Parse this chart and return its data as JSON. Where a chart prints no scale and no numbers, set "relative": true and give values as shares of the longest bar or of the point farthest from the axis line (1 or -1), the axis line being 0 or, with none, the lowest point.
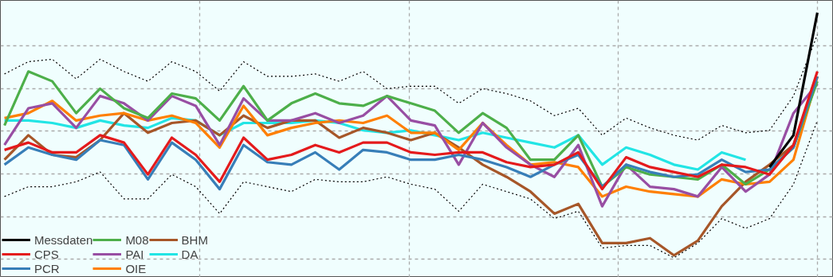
{
  "chart_data": {
    "type": "line",
    "relative": true,
    "grid": true,
    "legend": "bottom left",
    "line_style": "solid",
    "categories": [
      null,
      null,
      null,
      null,
      null,
      null,
      null,
      null,
      null,
      null,
      null,
      null,
      null,
      null,
      null,
      null,
      null,
      null,
      null,
      null,
      null,
      null,
      null,
      null,
      null,
      null,
      null,
      null,
      null,
      null,
      null,
      null,
      null,
      null,
      null
    ],
    "series": [
      {
        "name": "Messdaten",
        "color": "#000000",
        "values": [
          null,
          null,
          null,
          null,
          null,
          null,
          null,
          null,
          null,
          null,
          null,
          null,
          null,
          null,
          null,
          null,
          null,
          null,
          null,
          null,
          null,
          null,
          null,
          null,
          null,
          null,
          null,
          null,
          null,
          null,
          null,
          null,
          0.37,
          0.5,
          1.0
        ]
      },
      {
        "name": "CPS",
        "color": "#e41a1c",
        "values": [
          0.44,
          0.47,
          0.43,
          0.43,
          0.5,
          0.47,
          0.34,
          0.49,
          0.42,
          0.31,
          0.49,
          0.4,
          0.42,
          0.46,
          0.43,
          0.47,
          0.47,
          0.43,
          0.42,
          0.43,
          0.43,
          0.39,
          0.37,
          0.38,
          0.43,
          0.28,
          0.41,
          0.37,
          0.35,
          0.33,
          0.38,
          0.37,
          0.34,
          0.46,
          0.76
        ]
      },
      {
        "name": "PCR",
        "color": "#377eb8",
        "values": [
          0.38,
          0.45,
          0.42,
          0.4,
          0.48,
          0.46,
          0.32,
          0.47,
          0.4,
          0.28,
          0.46,
          0.39,
          0.38,
          0.43,
          0.36,
          0.44,
          0.43,
          0.4,
          0.4,
          0.42,
          0.4,
          0.37,
          0.33,
          0.38,
          0.42,
          0.29,
          0.38,
          0.35,
          0.33,
          0.34,
          0.4,
          0.35,
          0.36,
          0.45,
          0.74
        ]
      },
      {
        "name": "M08",
        "color": "#4daf4a",
        "values": [
          0.54,
          0.76,
          0.72,
          0.59,
          0.69,
          0.61,
          0.57,
          0.67,
          0.65,
          0.56,
          0.7,
          0.56,
          0.63,
          0.67,
          0.63,
          0.62,
          0.66,
          0.63,
          0.6,
          0.51,
          0.59,
          0.53,
          0.4,
          0.4,
          0.5,
          0.29,
          0.37,
          0.34,
          0.33,
          0.32,
          0.38,
          0.3,
          0.36,
          0.45,
          0.72
        ]
      },
      {
        "name": "PAI",
        "color": "#984ea3",
        "values": [
          0.46,
          0.61,
          0.63,
          0.53,
          0.66,
          0.63,
          0.56,
          0.66,
          0.62,
          0.46,
          0.65,
          0.56,
          0.56,
          0.59,
          0.55,
          0.58,
          0.66,
          0.56,
          0.54,
          0.38,
          0.55,
          0.45,
          0.38,
          0.33,
          0.46,
          0.21,
          0.38,
          0.29,
          0.28,
          0.25,
          0.37,
          0.27,
          0.34,
          0.59,
          0.71
        ]
      },
      {
        "name": "OIE",
        "color": "#ff7f00",
        "values": [
          0.57,
          0.59,
          0.64,
          0.56,
          0.58,
          0.59,
          0.56,
          0.58,
          0.55,
          0.45,
          0.62,
          0.5,
          0.53,
          0.55,
          0.56,
          0.55,
          0.58,
          0.51,
          0.51,
          0.44,
          0.55,
          0.46,
          0.38,
          0.39,
          0.37,
          0.25,
          0.29,
          0.27,
          0.26,
          0.25,
          0.32,
          0.3,
          0.31,
          0.4,
          0.74
        ]
      },
      {
        "name": "BHM",
        "color": "#a65628",
        "values": [
          0.4,
          0.5,
          0.42,
          0.41,
          0.48,
          0.59,
          0.51,
          0.55,
          0.56,
          0.5,
          0.58,
          0.53,
          0.56,
          0.56,
          0.49,
          0.53,
          0.51,
          0.48,
          0.51,
          0.45,
          0.38,
          0.33,
          0.27,
          0.18,
          0.22,
          0.06,
          0.06,
          0.08,
          0.01,
          0.07,
          0.21,
          0.31,
          0.38,
          0.46,
          0.74
        ]
      },
      {
        "name": "DA",
        "color": "#22e5e5",
        "values": [
          0.56,
          0.56,
          0.55,
          0.53,
          0.56,
          0.54,
          0.53,
          0.57,
          0.56,
          0.5,
          0.55,
          0.55,
          0.55,
          0.56,
          0.55,
          0.52,
          0.51,
          0.52,
          0.5,
          0.48,
          0.51,
          0.49,
          0.47,
          0.45,
          0.5,
          0.38,
          0.45,
          0.42,
          0.38,
          0.36,
          0.43,
          0.4,
          null,
          null,
          null
        ]
      },
      {
        "color": "#000000",
        "line_style": "dotted",
        "values": [
          0.75,
          0.8,
          0.81,
          0.73,
          0.81,
          0.76,
          0.72,
          0.8,
          0.76,
          0.68,
          0.8,
          0.74,
          0.74,
          0.75,
          0.72,
          0.76,
          0.69,
          0.7,
          0.7,
          0.63,
          0.69,
          0.67,
          0.64,
          0.58,
          0.61,
          0.5,
          0.57,
          0.53,
          0.5,
          0.48,
          0.54,
          0.51,
          0.52,
          0.66,
          0.91
        ]
      },
      {
        "color": "#000000",
        "line_style": "dotted",
        "values": [
          0.25,
          0.29,
          0.29,
          0.31,
          0.35,
          0.24,
          0.24,
          0.34,
          0.29,
          0.18,
          0.31,
          0.29,
          0.27,
          0.32,
          0.31,
          0.31,
          0.33,
          0.3,
          0.28,
          0.19,
          0.3,
          0.27,
          0.24,
          0.16,
          0.19,
          0.04,
          0.05,
          0.05,
          0.0,
          0.06,
          0.16,
          0.12,
          0.16,
          0.3,
          0.56
        ]
      }
    ]
  }
}
